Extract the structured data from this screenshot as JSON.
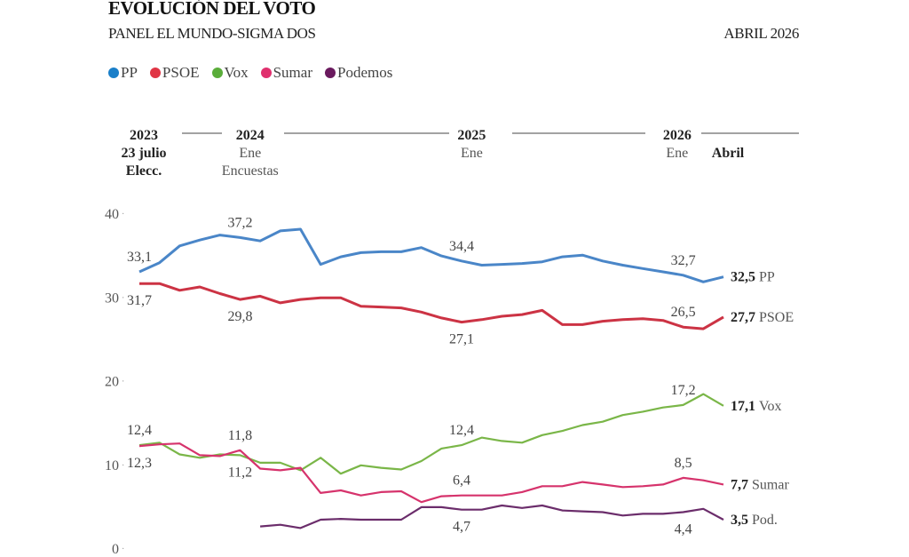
{
  "header": {
    "title": "EVOLUCIÓN DEL VOTO",
    "subtitle": "PANEL EL MUNDO-SIGMA DOS",
    "date": "ABRIL 2026"
  },
  "legend": [
    {
      "label": "PP",
      "color": "#1a7fc9"
    },
    {
      "label": "PSOE",
      "color": "#e03545"
    },
    {
      "label": "Vox",
      "color": "#5aad3a"
    },
    {
      "label": "Sumar",
      "color": "#e0306e"
    },
    {
      "label": "Podemos",
      "color": "#6a1a5e"
    }
  ],
  "chart_data": {
    "type": "line",
    "title": "EVOLUCIÓN DEL VOTO",
    "ylim": [
      0,
      40
    ],
    "yticks": [
      "0",
      "10",
      "20",
      "30",
      "40"
    ],
    "grid": false,
    "legend_position": "top-left",
    "time_axis": [
      {
        "year": "2023",
        "sub": [
          "23 julio",
          "Elecc."
        ],
        "sub_bold": true,
        "at": 0
      },
      {
        "year": "2024",
        "sub": [
          "Ene",
          "Encuestas"
        ],
        "sub_bold": false,
        "at": 5.5
      },
      {
        "year": "2025",
        "sub": [
          "Ene"
        ],
        "sub_bold": false,
        "at": 16.5
      },
      {
        "year": "2026",
        "sub": [
          "Ene"
        ],
        "sub_bold": false,
        "at": 26.7
      },
      {
        "year": "",
        "sub": [
          "Abril"
        ],
        "sub_bold": true,
        "at": 29
      }
    ],
    "series": [
      {
        "name": "PP",
        "end_label": "PP",
        "color": "#4a86c8",
        "values": [
          33.1,
          34.2,
          36.2,
          36.9,
          37.5,
          37.2,
          36.8,
          38.0,
          38.2,
          34.0,
          34.9,
          35.4,
          35.5,
          35.5,
          36.0,
          35.0,
          34.4,
          33.9,
          34.0,
          34.1,
          34.3,
          34.9,
          35.1,
          34.4,
          33.9,
          33.5,
          33.1,
          32.7,
          31.9,
          32.5
        ],
        "labels": [
          {
            "i": 0,
            "text": "33,1",
            "pos": "above"
          },
          {
            "i": 5,
            "text": "37,2",
            "pos": "above"
          },
          {
            "i": 16,
            "text": "34,4",
            "pos": "above"
          },
          {
            "i": 27,
            "text": "32,7",
            "pos": "above"
          }
        ],
        "final": "32,5"
      },
      {
        "name": "PSOE",
        "end_label": "PSOE",
        "color": "#cc3344",
        "values": [
          31.7,
          31.7,
          30.9,
          31.3,
          30.5,
          29.8,
          30.2,
          29.4,
          29.8,
          30.0,
          30.0,
          29.0,
          28.9,
          28.8,
          28.3,
          27.6,
          27.1,
          27.4,
          27.8,
          28.0,
          28.5,
          26.8,
          26.8,
          27.2,
          27.4,
          27.5,
          27.3,
          26.5,
          26.3,
          27.7
        ],
        "labels": [
          {
            "i": 0,
            "text": "31,7",
            "pos": "below"
          },
          {
            "i": 5,
            "text": "29,8",
            "pos": "below"
          },
          {
            "i": 16,
            "text": "27,1",
            "pos": "below"
          },
          {
            "i": 27,
            "text": "26,5",
            "pos": "above"
          }
        ],
        "final": "27,7"
      },
      {
        "name": "Vox",
        "end_label": "Vox",
        "color": "#7ab648",
        "values": [
          12.4,
          12.7,
          11.3,
          10.9,
          11.3,
          11.2,
          10.3,
          10.3,
          9.4,
          10.9,
          9.0,
          10.0,
          9.7,
          9.5,
          10.5,
          12.0,
          12.4,
          13.3,
          12.9,
          12.7,
          13.6,
          14.1,
          14.8,
          15.2,
          16.0,
          16.4,
          16.9,
          17.2,
          18.5,
          17.1
        ],
        "labels": [
          {
            "i": 0,
            "text": "12,4",
            "pos": "above"
          },
          {
            "i": 5,
            "text": "11,2",
            "pos": "below"
          },
          {
            "i": 16,
            "text": "12,4",
            "pos": "above"
          },
          {
            "i": 27,
            "text": "17,2",
            "pos": "above"
          }
        ],
        "final": "17,1"
      },
      {
        "name": "Sumar",
        "end_label": "Sumar",
        "color": "#d6336c",
        "values": [
          12.3,
          12.5,
          12.6,
          11.2,
          11.1,
          11.8,
          9.6,
          9.4,
          9.7,
          6.7,
          7.0,
          6.4,
          6.8,
          6.9,
          5.6,
          6.3,
          6.4,
          6.4,
          6.4,
          6.8,
          7.5,
          7.5,
          8.0,
          7.7,
          7.4,
          7.5,
          7.7,
          8.5,
          8.2,
          7.7
        ],
        "labels": [
          {
            "i": 0,
            "text": "12,3",
            "pos": "below"
          },
          {
            "i": 5,
            "text": "11,8",
            "pos": "above"
          },
          {
            "i": 16,
            "text": "6,4",
            "pos": "above"
          },
          {
            "i": 27,
            "text": "8,5",
            "pos": "above"
          }
        ],
        "final": "7,7"
      },
      {
        "name": "Podemos",
        "end_label": "Pod.",
        "color": "#6b2d6b",
        "values": [
          null,
          null,
          null,
          null,
          null,
          null,
          2.7,
          2.9,
          2.5,
          3.5,
          3.6,
          3.5,
          3.5,
          3.5,
          5.0,
          5.0,
          4.7,
          4.7,
          5.2,
          4.9,
          5.2,
          4.6,
          4.5,
          4.4,
          4.0,
          4.2,
          4.2,
          4.4,
          4.8,
          3.5
        ],
        "labels": [
          {
            "i": 16,
            "text": "4,7",
            "pos": "below"
          },
          {
            "i": 27,
            "text": "4,4",
            "pos": "below"
          }
        ],
        "final": "3,5"
      }
    ]
  }
}
